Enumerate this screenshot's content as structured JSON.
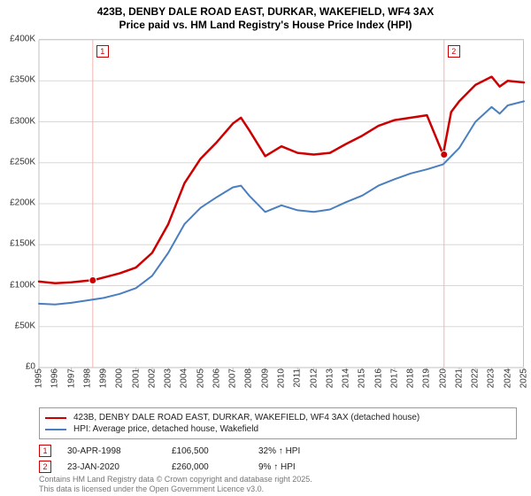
{
  "title_line1": "423B, DENBY DALE ROAD EAST, DURKAR, WAKEFIELD, WF4 3AX",
  "title_line2": "Price paid vs. HM Land Registry's House Price Index (HPI)",
  "chart": {
    "type": "line",
    "background_color": "#ffffff",
    "grid_color": "#d8d8d8",
    "axis_color": "#c0c0c0",
    "label_fontsize": 10,
    "title_fontsize": 12,
    "x": {
      "min": 1995,
      "max": 2025,
      "ticks": [
        1995,
        1996,
        1997,
        1998,
        1999,
        2000,
        2001,
        2002,
        2003,
        2004,
        2005,
        2006,
        2007,
        2008,
        2009,
        2010,
        2011,
        2012,
        2013,
        2014,
        2015,
        2016,
        2017,
        2018,
        2019,
        2020,
        2021,
        2022,
        2023,
        2024,
        2025
      ],
      "tick_rotation_deg": -90
    },
    "y": {
      "min": 0,
      "max": 400000,
      "ticks": [
        0,
        50000,
        100000,
        150000,
        200000,
        250000,
        300000,
        350000,
        400000
      ],
      "tick_labels": [
        "£0",
        "£50K",
        "£100K",
        "£150K",
        "£200K",
        "£250K",
        "£300K",
        "£350K",
        "£400K"
      ]
    },
    "series": [
      {
        "name": "price_paid",
        "label": "423B, DENBY DALE ROAD EAST, DURKAR, WAKEFIELD, WF4 3AX (detached house)",
        "color": "#cc0000",
        "line_width": 2.5,
        "data": [
          [
            1995,
            105000
          ],
          [
            1996,
            103000
          ],
          [
            1997,
            104000
          ],
          [
            1998,
            106000
          ],
          [
            1998.33,
            106500
          ],
          [
            1999,
            110000
          ],
          [
            2000,
            115000
          ],
          [
            2001,
            122000
          ],
          [
            2002,
            140000
          ],
          [
            2003,
            175000
          ],
          [
            2004,
            225000
          ],
          [
            2005,
            255000
          ],
          [
            2006,
            275000
          ],
          [
            2007,
            298000
          ],
          [
            2007.5,
            305000
          ],
          [
            2008,
            290000
          ],
          [
            2009,
            258000
          ],
          [
            2010,
            270000
          ],
          [
            2011,
            262000
          ],
          [
            2012,
            260000
          ],
          [
            2013,
            262000
          ],
          [
            2014,
            273000
          ],
          [
            2015,
            283000
          ],
          [
            2016,
            295000
          ],
          [
            2017,
            302000
          ],
          [
            2018,
            305000
          ],
          [
            2019,
            308000
          ],
          [
            2020,
            260000
          ],
          [
            2020.5,
            312000
          ],
          [
            2021,
            325000
          ],
          [
            2022,
            345000
          ],
          [
            2023,
            355000
          ],
          [
            2023.5,
            343000
          ],
          [
            2024,
            350000
          ],
          [
            2025,
            348000
          ]
        ]
      },
      {
        "name": "hpi",
        "label": "HPI: Average price, detached house, Wakefield",
        "color": "#4a7fbf",
        "line_width": 2,
        "data": [
          [
            1995,
            78000
          ],
          [
            1996,
            77000
          ],
          [
            1997,
            79000
          ],
          [
            1998,
            82000
          ],
          [
            1999,
            85000
          ],
          [
            2000,
            90000
          ],
          [
            2001,
            97000
          ],
          [
            2002,
            112000
          ],
          [
            2003,
            140000
          ],
          [
            2004,
            175000
          ],
          [
            2005,
            195000
          ],
          [
            2006,
            208000
          ],
          [
            2007,
            220000
          ],
          [
            2007.5,
            222000
          ],
          [
            2008,
            210000
          ],
          [
            2009,
            190000
          ],
          [
            2010,
            198000
          ],
          [
            2011,
            192000
          ],
          [
            2012,
            190000
          ],
          [
            2013,
            193000
          ],
          [
            2014,
            202000
          ],
          [
            2015,
            210000
          ],
          [
            2016,
            222000
          ],
          [
            2017,
            230000
          ],
          [
            2018,
            237000
          ],
          [
            2019,
            242000
          ],
          [
            2020,
            248000
          ],
          [
            2021,
            268000
          ],
          [
            2022,
            300000
          ],
          [
            2023,
            318000
          ],
          [
            2023.5,
            310000
          ],
          [
            2024,
            320000
          ],
          [
            2025,
            325000
          ]
        ]
      }
    ],
    "markers": [
      {
        "n": 1,
        "x": 1998.33,
        "y": 106500,
        "color": "#cc0000",
        "vline_color": "#f2b3b3"
      },
      {
        "n": 2,
        "x": 2020.06,
        "y": 260000,
        "color": "#cc0000",
        "vline_color": "#f2b3b3"
      }
    ]
  },
  "legend": {
    "border_color": "#999999"
  },
  "events": [
    {
      "n": 1,
      "date": "30-APR-1998",
      "price": "£106,500",
      "delta": "32% ↑ HPI",
      "color": "#cc0000"
    },
    {
      "n": 2,
      "date": "23-JAN-2020",
      "price": "£260,000",
      "delta": "9% ↑ HPI",
      "color": "#cc0000"
    }
  ],
  "attribution_line1": "Contains HM Land Registry data © Crown copyright and database right 2025.",
  "attribution_line2": "This data is licensed under the Open Government Licence v3.0."
}
